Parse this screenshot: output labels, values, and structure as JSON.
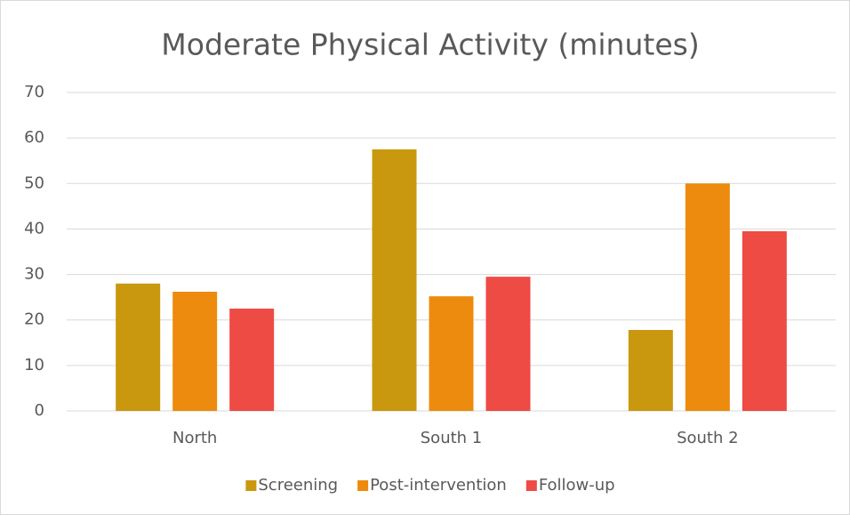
{
  "chart_data": {
    "type": "bar",
    "title": "Moderate Physical Activity (minutes)",
    "categories": [
      "North",
      "South 1",
      "South 2"
    ],
    "series": [
      {
        "name": "Screening",
        "color": "#c9980e",
        "values": [
          28,
          57.5,
          17.8
        ]
      },
      {
        "name": "Post-intervention",
        "color": "#ed8b0e",
        "values": [
          26.2,
          25.2,
          50
        ]
      },
      {
        "name": "Follow-up",
        "color": "#ee4b44",
        "values": [
          22.5,
          29.5,
          39.5
        ]
      }
    ],
    "ylim": [
      0,
      70
    ],
    "yticks": [
      0,
      10,
      20,
      30,
      40,
      50,
      60,
      70
    ],
    "grid": true,
    "legend": "bottom"
  }
}
